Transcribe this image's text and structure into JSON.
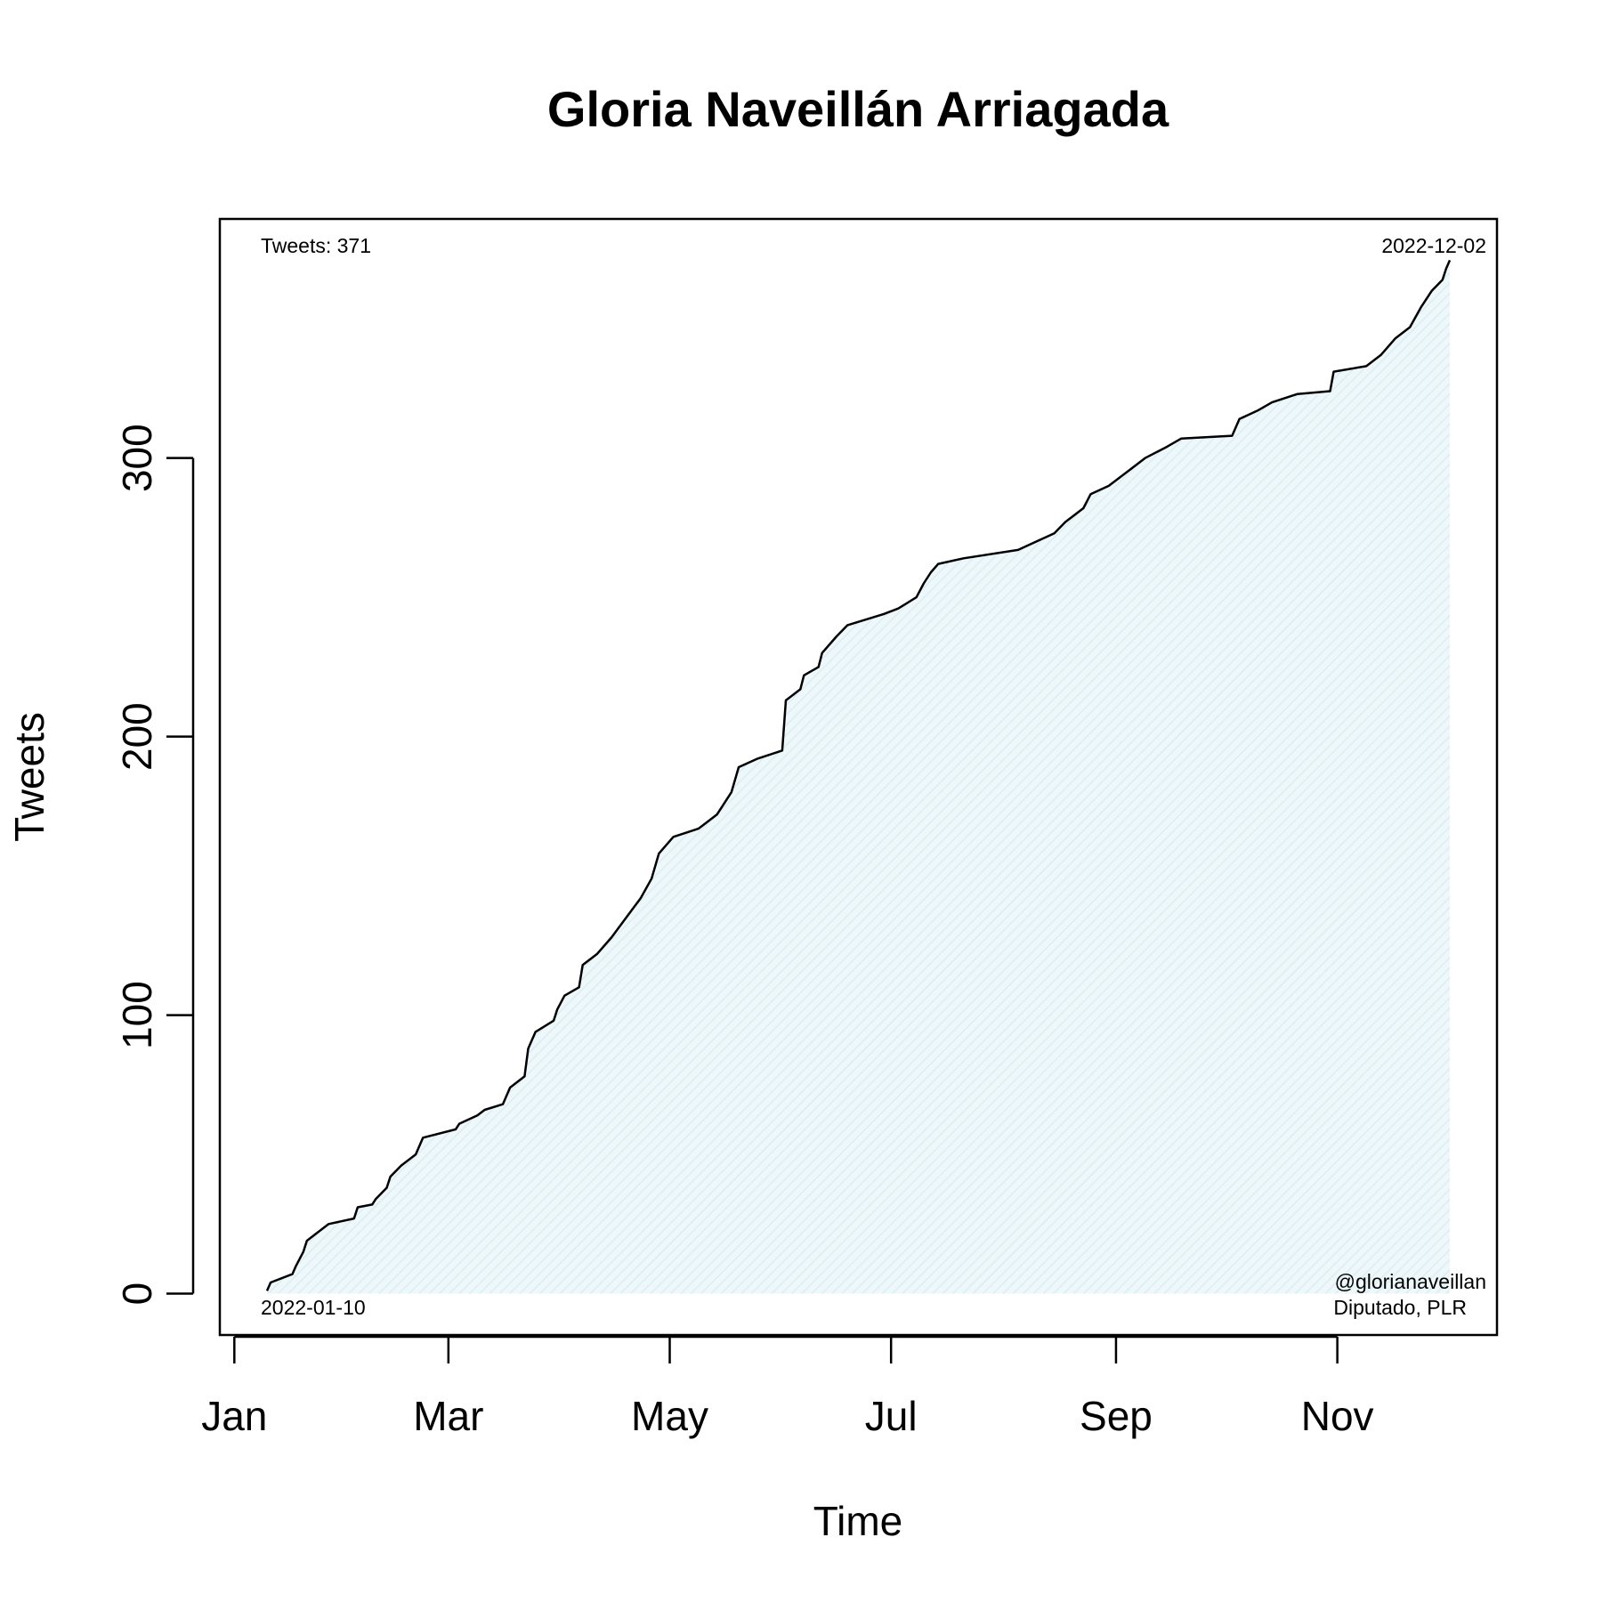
{
  "chart_data": {
    "type": "area-line",
    "title": "Gloria Naveillán Arriagada",
    "x_label": "Time",
    "y_label": "Tweets",
    "annotations": {
      "top_left": "Tweets: 371",
      "top_right": "2022-12-02",
      "bottom_left": "2022-01-10",
      "bottom_right": [
        "@glorianaveillan",
        "Diputado, PLR"
      ]
    },
    "x": [
      "2022-01-10",
      "2022-01-11",
      "2022-01-17",
      "2022-01-18",
      "2022-01-20",
      "2022-01-21",
      "2022-01-23",
      "2022-01-27",
      "2022-02-03",
      "2022-02-04",
      "2022-02-08",
      "2022-02-09",
      "2022-02-12",
      "2022-02-13",
      "2022-02-16",
      "2022-02-20",
      "2022-02-22",
      "2022-03-03",
      "2022-03-04",
      "2022-03-09",
      "2022-03-11",
      "2022-03-16",
      "2022-03-18",
      "2022-03-22",
      "2022-03-23",
      "2022-03-25",
      "2022-03-30",
      "2022-03-31",
      "2022-04-02",
      "2022-04-06",
      "2022-04-07",
      "2022-04-11",
      "2022-04-15",
      "2022-04-19",
      "2022-04-23",
      "2022-04-26",
      "2022-04-28",
      "2022-05-02",
      "2022-05-09",
      "2022-05-14",
      "2022-05-18",
      "2022-05-20",
      "2022-05-25",
      "2022-06-01",
      "2022-06-02",
      "2022-06-06",
      "2022-06-07",
      "2022-06-11",
      "2022-06-12",
      "2022-06-16",
      "2022-06-19",
      "2022-06-29",
      "2022-07-03",
      "2022-07-08",
      "2022-07-10",
      "2022-07-12",
      "2022-07-14",
      "2022-07-21",
      "2022-08-05",
      "2022-08-10",
      "2022-08-15",
      "2022-08-18",
      "2022-08-23",
      "2022-08-25",
      "2022-08-30",
      "2022-09-05",
      "2022-09-09",
      "2022-09-15",
      "2022-09-19",
      "2022-10-03",
      "2022-10-05",
      "2022-10-10",
      "2022-10-14",
      "2022-10-21",
      "2022-10-30",
      "2022-10-31",
      "2022-11-09",
      "2022-11-13",
      "2022-11-17",
      "2022-11-21",
      "2022-11-24",
      "2022-11-27",
      "2022-11-30",
      "2022-12-01",
      "2022-12-02"
    ],
    "series": [
      {
        "name": "Tweets",
        "color": "#000000",
        "fill": "#e6f3f7",
        "values": [
          1,
          4,
          7,
          10,
          15,
          19,
          21,
          25,
          27,
          31,
          32,
          34,
          38,
          42,
          46,
          50,
          56,
          59,
          61,
          64,
          66,
          68,
          74,
          78,
          88,
          94,
          98,
          102,
          107,
          110,
          118,
          122,
          128,
          135,
          142,
          149,
          158,
          164,
          167,
          172,
          180,
          189,
          192,
          195,
          213,
          217,
          222,
          225,
          230,
          236,
          240,
          244,
          246,
          250,
          255,
          259,
          262,
          264,
          267,
          270,
          273,
          277,
          282,
          287,
          290,
          296,
          300,
          304,
          307,
          308,
          314,
          317,
          320,
          323,
          324,
          331,
          333,
          337,
          343,
          347,
          354,
          360,
          364,
          368,
          371
        ]
      }
    ],
    "xlim": [
      "2021-12-28",
      "2022-12-15"
    ],
    "xticks": [
      {
        "value": "2022-01-01",
        "label": "Jan"
      },
      {
        "value": "2022-03-01",
        "label": "Mar"
      },
      {
        "value": "2022-05-01",
        "label": "May"
      },
      {
        "value": "2022-07-01",
        "label": "Jul"
      },
      {
        "value": "2022-09-01",
        "label": "Sep"
      },
      {
        "value": "2022-11-01",
        "label": "Nov"
      }
    ],
    "ylim": [
      -14.84,
      385.84
    ],
    "yticks": [
      0,
      100,
      200,
      300
    ],
    "grid": false
  }
}
